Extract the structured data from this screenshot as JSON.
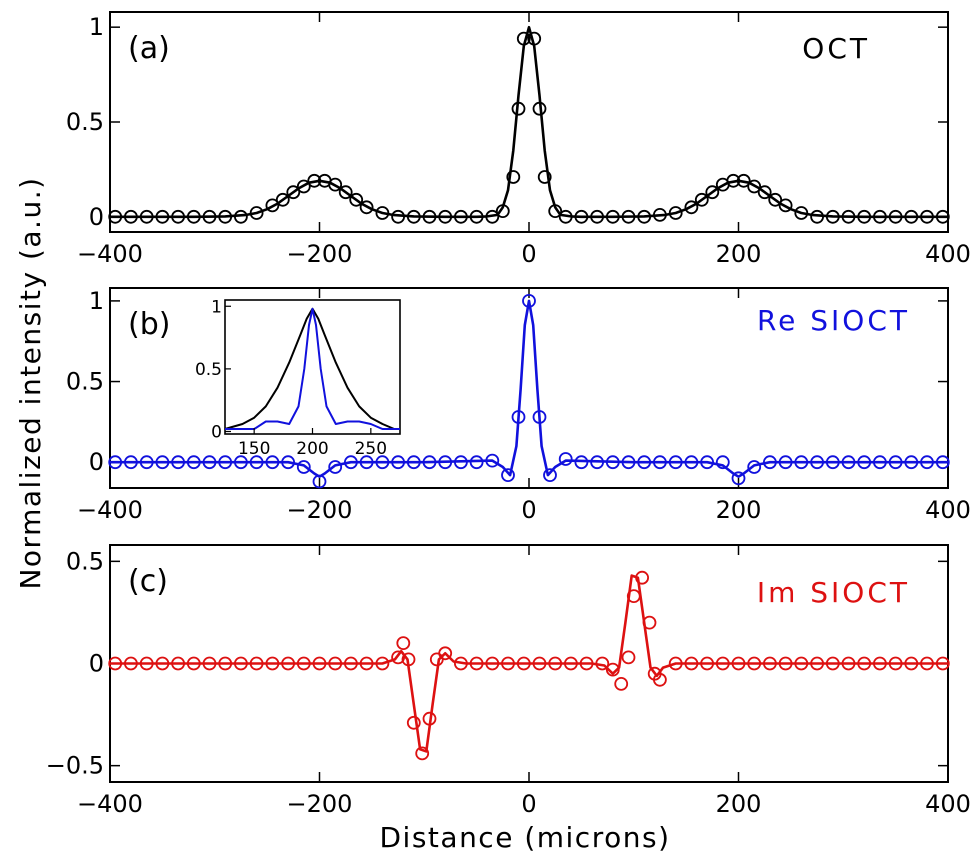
{
  "chart_data": {
    "type": "line",
    "xlabel": "Distance (microns)",
    "ylabel": "Normalized intensity (a.u.)",
    "panels": [
      {
        "id": "a",
        "label": "(a)",
        "legend": "OCT",
        "color": "#000000",
        "xlim": [
          -400,
          400
        ],
        "ylim": [
          -0.08,
          1.08
        ],
        "xticks": [
          -400,
          -200,
          0,
          200,
          400
        ],
        "xtick_labels": [
          "−400",
          "−200",
          "0",
          "200",
          "400"
        ],
        "yticks": [
          0,
          0.5,
          1
        ],
        "ytick_labels": [
          "0",
          "0.5",
          "1"
        ],
        "line": {
          "x": [
            -400,
            -360,
            -320,
            -290,
            -270,
            -260,
            -250,
            -240,
            -230,
            -220,
            -210,
            -200,
            -190,
            -180,
            -170,
            -160,
            -150,
            -140,
            -130,
            -110,
            -80,
            -50,
            -40,
            -30,
            -25,
            -20,
            -15,
            -10,
            -5,
            0,
            5,
            10,
            15,
            20,
            25,
            30,
            40,
            50,
            80,
            110,
            130,
            140,
            150,
            160,
            170,
            180,
            190,
            200,
            210,
            220,
            230,
            240,
            250,
            260,
            270,
            290,
            320,
            360,
            400
          ],
          "y": [
            0,
            0,
            0,
            0.002,
            0.01,
            0.02,
            0.04,
            0.07,
            0.11,
            0.15,
            0.18,
            0.19,
            0.18,
            0.15,
            0.11,
            0.07,
            0.04,
            0.02,
            0.01,
            0.002,
            0,
            0,
            0.002,
            0.01,
            0.05,
            0.14,
            0.35,
            0.64,
            0.9,
            1.0,
            0.9,
            0.64,
            0.35,
            0.14,
            0.05,
            0.01,
            0.002,
            0,
            0,
            0.002,
            0.01,
            0.02,
            0.04,
            0.07,
            0.11,
            0.15,
            0.18,
            0.19,
            0.18,
            0.15,
            0.11,
            0.07,
            0.04,
            0.02,
            0.01,
            0.002,
            0,
            0,
            0
          ]
        },
        "markers": {
          "x": [
            -395,
            -380,
            -365,
            -350,
            -335,
            -320,
            -305,
            -290,
            -275,
            -260,
            -245,
            -235,
            -225,
            -215,
            -205,
            -195,
            -185,
            -175,
            -165,
            -155,
            -140,
            -125,
            -110,
            -95,
            -80,
            -65,
            -50,
            -35,
            -25,
            -15,
            -10,
            -5,
            5,
            10,
            15,
            25,
            35,
            50,
            65,
            80,
            95,
            110,
            125,
            140,
            155,
            165,
            175,
            185,
            195,
            205,
            215,
            225,
            235,
            245,
            260,
            275,
            290,
            305,
            320,
            335,
            350,
            365,
            380,
            395
          ],
          "y": [
            0,
            0,
            0,
            0,
            0,
            0,
            0,
            0,
            0,
            0.02,
            0.06,
            0.09,
            0.13,
            0.16,
            0.19,
            0.19,
            0.17,
            0.13,
            0.09,
            0.05,
            0.02,
            0,
            0,
            0,
            0,
            0,
            0,
            0,
            0.03,
            0.21,
            0.57,
            0.94,
            0.94,
            0.57,
            0.21,
            0.03,
            0,
            0,
            0,
            0,
            0,
            0,
            0.01,
            0.02,
            0.05,
            0.09,
            0.13,
            0.17,
            0.19,
            0.19,
            0.16,
            0.13,
            0.09,
            0.06,
            0.02,
            0,
            0,
            0,
            0,
            0,
            0,
            0,
            0,
            0
          ]
        }
      },
      {
        "id": "b",
        "label": "(b)",
        "legend": "Re SIOCT",
        "color": "#1111dd",
        "xlim": [
          -400,
          400
        ],
        "ylim": [
          -0.16,
          1.08
        ],
        "xticks": [
          -400,
          -200,
          0,
          200,
          400
        ],
        "xtick_labels": [
          "−400",
          "−200",
          "0",
          "200",
          "400"
        ],
        "yticks": [
          0,
          0.5,
          1
        ],
        "ytick_labels": [
          "0",
          "0.5",
          "1"
        ],
        "line": {
          "x": [
            -400,
            -300,
            -230,
            -215,
            -205,
            -200,
            -195,
            -185,
            -170,
            -100,
            -35,
            -25,
            -18,
            -12,
            -8,
            -4,
            0,
            4,
            8,
            12,
            18,
            25,
            35,
            100,
            170,
            185,
            195,
            200,
            205,
            215,
            230,
            300,
            400
          ],
          "y": [
            0,
            0,
            0,
            -0.02,
            -0.07,
            -0.09,
            -0.07,
            -0.02,
            0,
            0,
            0.01,
            -0.03,
            -0.08,
            0.1,
            0.45,
            0.85,
            1.0,
            0.85,
            0.45,
            0.1,
            -0.08,
            -0.03,
            0.01,
            0,
            0,
            -0.02,
            -0.07,
            -0.09,
            -0.07,
            -0.02,
            0,
            0,
            0
          ]
        },
        "markers": {
          "x": [
            -395,
            -380,
            -365,
            -350,
            -335,
            -320,
            -305,
            -290,
            -275,
            -260,
            -245,
            -230,
            -215,
            -200,
            -185,
            -170,
            -155,
            -140,
            -125,
            -110,
            -95,
            -80,
            -65,
            -50,
            -35,
            -20,
            -10,
            0,
            10,
            20,
            35,
            50,
            65,
            80,
            95,
            110,
            125,
            140,
            155,
            170,
            185,
            200,
            215,
            230,
            245,
            260,
            275,
            290,
            305,
            320,
            335,
            350,
            365,
            380,
            395
          ],
          "y": [
            0,
            0,
            0,
            0,
            0,
            0,
            0,
            0,
            0,
            0,
            0,
            0,
            -0.03,
            -0.12,
            -0.03,
            0,
            0,
            0,
            0,
            0,
            0,
            0,
            0,
            0,
            0.01,
            -0.08,
            0.28,
            1.0,
            0.28,
            -0.08,
            0.02,
            0,
            0,
            0,
            0,
            0,
            0,
            0,
            0,
            0,
            0,
            -0.1,
            -0.03,
            0,
            0,
            0,
            0,
            0,
            0,
            0,
            0,
            0,
            0,
            0,
            0
          ]
        },
        "inset": {
          "xlim": [
            125,
            275
          ],
          "ylim": [
            -0.02,
            1.05
          ],
          "xticks": [
            150,
            200,
            250
          ],
          "xtick_labels": [
            "150",
            "200",
            "250"
          ],
          "yticks": [
            0,
            0.5,
            1
          ],
          "ytick_labels": [
            "0",
            "0.5",
            "1"
          ],
          "series": [
            {
              "name": "OCT",
              "color": "#000000",
              "x": [
                125,
                140,
                150,
                160,
                170,
                180,
                190,
                195,
                200,
                205,
                210,
                220,
                230,
                240,
                250,
                260,
                270,
                275
              ],
              "y": [
                0.02,
                0.06,
                0.11,
                0.2,
                0.35,
                0.55,
                0.78,
                0.9,
                0.98,
                0.9,
                0.78,
                0.55,
                0.35,
                0.2,
                0.11,
                0.06,
                0.02,
                0.02
              ]
            },
            {
              "name": "Re SIOCT",
              "color": "#1111dd",
              "x": [
                125,
                150,
                160,
                170,
                180,
                188,
                193,
                197,
                200,
                203,
                207,
                212,
                220,
                230,
                240,
                250,
                260,
                275
              ],
              "y": [
                0.02,
                0.02,
                0.08,
                0.08,
                0.06,
                0.2,
                0.5,
                0.85,
                0.98,
                0.85,
                0.5,
                0.2,
                0.06,
                0.08,
                0.08,
                0.06,
                0.02,
                0.02
              ]
            }
          ]
        }
      },
      {
        "id": "c",
        "label": "(c)",
        "legend": "Im SIOCT",
        "color": "#dd1111",
        "xlim": [
          -400,
          400
        ],
        "ylim": [
          -0.58,
          0.58
        ],
        "xticks": [
          -400,
          -200,
          0,
          200,
          400
        ],
        "xtick_labels": [
          "−400",
          "−200",
          "0",
          "200",
          "400"
        ],
        "yticks": [
          -0.5,
          0,
          0.5
        ],
        "ytick_labels": [
          "−0.5",
          "0",
          "0.5"
        ],
        "line": {
          "x": [
            -400,
            -140,
            -128,
            -122,
            -116,
            -110,
            -104,
            -98,
            -92,
            -86,
            -80,
            -72,
            -60,
            60,
            72,
            80,
            86,
            92,
            98,
            104,
            110,
            116,
            122,
            128,
            140,
            400
          ],
          "y": [
            0,
            0,
            0.02,
            0.06,
            0.02,
            -0.2,
            -0.42,
            -0.43,
            -0.2,
            0.02,
            0.05,
            0.01,
            0,
            0,
            -0.01,
            -0.05,
            -0.02,
            0.2,
            0.43,
            0.42,
            0.2,
            -0.02,
            -0.06,
            -0.02,
            0,
            0
          ]
        },
        "markers": {
          "x": [
            -395,
            -380,
            -365,
            -350,
            -335,
            -320,
            -305,
            -290,
            -275,
            -260,
            -245,
            -230,
            -215,
            -200,
            -185,
            -170,
            -155,
            -140,
            -125,
            -120,
            -115,
            -110,
            -102,
            -95,
            -88,
            -80,
            -65,
            -50,
            -35,
            -20,
            -5,
            10,
            25,
            40,
            55,
            70,
            80,
            88,
            95,
            100,
            108,
            115,
            120,
            125,
            140,
            155,
            170,
            185,
            200,
            215,
            230,
            245,
            260,
            275,
            290,
            305,
            320,
            335,
            350,
            365,
            380,
            395
          ],
          "y": [
            0,
            0,
            0,
            0,
            0,
            0,
            0,
            0,
            0,
            0,
            0,
            0,
            0,
            0,
            0,
            0,
            0,
            0,
            0.03,
            0.1,
            0.02,
            -0.29,
            -0.44,
            -0.27,
            0.02,
            0.05,
            0,
            0,
            0,
            0,
            0,
            0,
            0,
            0,
            0,
            0,
            -0.03,
            -0.1,
            0.03,
            0.33,
            0.42,
            0.2,
            -0.05,
            -0.08,
            0,
            0,
            0,
            0,
            0,
            0,
            0,
            0,
            0,
            0,
            0,
            0,
            0,
            0,
            0,
            0,
            0,
            0
          ]
        }
      }
    ]
  }
}
